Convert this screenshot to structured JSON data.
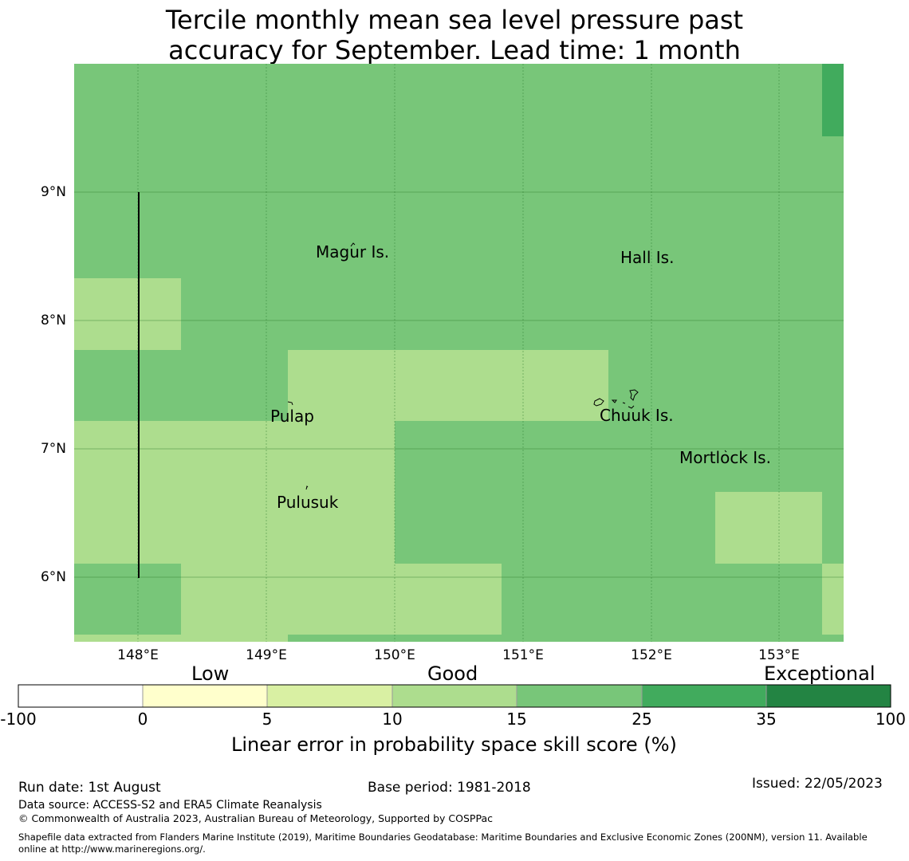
{
  "title": {
    "line1": "Tercile monthly mean sea level pressure past",
    "line2": "accuracy for September. Lead time: 1 month"
  },
  "map": {
    "lat_labels": [
      "9°N",
      "8°N",
      "7°N",
      "6°N"
    ],
    "lon_labels": [
      "148°E",
      "149°E",
      "150°E",
      "151°E",
      "152°E",
      "153°E"
    ],
    "places": [
      "Magur Is.",
      "Hall Is.",
      "Pulap",
      "Chuuk Is.",
      "Mortlock Is.",
      "Pulusuk"
    ],
    "lon_range": [
      147.5,
      153.5
    ],
    "lat_range": [
      5.5,
      10.0
    ],
    "grid": true
  },
  "colorbar": {
    "categories": [
      "Low",
      "Good",
      "Exceptional"
    ],
    "ticks": [
      "-100",
      "0",
      "5",
      "10",
      "15",
      "25",
      "35",
      "100"
    ],
    "colors": [
      "#ffffff",
      "#ffffcc",
      "#d9f0a3",
      "#addd8e",
      "#78c679",
      "#41ab5d",
      "#238443"
    ],
    "label": "Linear error in probability space skill score (%)"
  },
  "footer": {
    "run_date": "Run date: 1st August",
    "base_period": "Base period: 1981-2018",
    "issued": "Issued: 22/05/2023",
    "data_source": "Data source: ACCESS-S2 and ERA5 Climate Reanalysis",
    "copyright": "© Commonwealth of Australia 2023, Australian Bureau of Meteorology, Supported by COSPPac",
    "shapefile_1": "Shapefile data extracted from Flanders Marine Institute (2019), Maritime Boundaries Geodatabase: Maritime Boundaries and Exclusive Economic Zones (200NM), version 11. Available",
    "shapefile_2": "online at http://www.marineregions.org/."
  }
}
